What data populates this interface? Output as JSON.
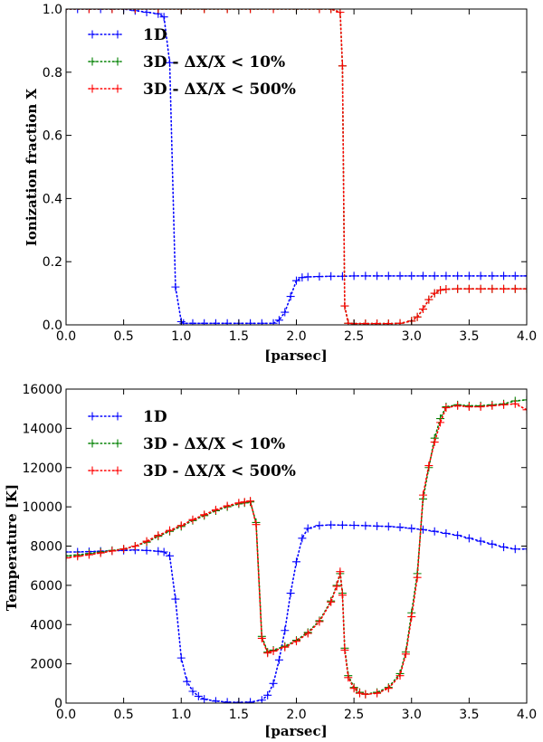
{
  "chart_data": [
    {
      "type": "line",
      "title": "",
      "xlabel": "[parsec]",
      "ylabel": "Ionization fraction X",
      "xlim": [
        0.0,
        4.0
      ],
      "ylim": [
        0.0,
        1.0
      ],
      "xticks": [
        "0.0",
        "0.5",
        "1.0",
        "1.5",
        "2.0",
        "2.5",
        "3.0",
        "3.5",
        "4.0"
      ],
      "yticks": [
        "0.0",
        "0.2",
        "0.4",
        "0.6",
        "0.8",
        "1.0"
      ],
      "legend_position": "top-left",
      "series": [
        {
          "name": "1D",
          "color": "#0000ff",
          "x": [
            0.0,
            0.1,
            0.2,
            0.3,
            0.4,
            0.5,
            0.6,
            0.7,
            0.8,
            0.85,
            0.9,
            0.95,
            1.0,
            1.02,
            1.1,
            1.2,
            1.3,
            1.4,
            1.5,
            1.6,
            1.7,
            1.8,
            1.85,
            1.9,
            1.95,
            2.0,
            2.05,
            2.1,
            2.2,
            2.3,
            2.4,
            2.5,
            2.6,
            2.7,
            2.8,
            2.9,
            3.0,
            3.1,
            3.2,
            3.3,
            3.4,
            3.5,
            3.6,
            3.7,
            3.8,
            3.9,
            4.0
          ],
          "y": [
            1.0,
            1.0,
            1.0,
            1.0,
            1.0,
            1.0,
            0.995,
            0.99,
            0.985,
            0.975,
            0.83,
            0.12,
            0.01,
            0.005,
            0.005,
            0.005,
            0.005,
            0.005,
            0.005,
            0.005,
            0.005,
            0.005,
            0.015,
            0.04,
            0.09,
            0.14,
            0.15,
            0.152,
            0.153,
            0.154,
            0.154,
            0.155,
            0.155,
            0.155,
            0.155,
            0.155,
            0.155,
            0.155,
            0.155,
            0.155,
            0.155,
            0.155,
            0.155,
            0.155,
            0.155,
            0.155,
            0.155
          ]
        },
        {
          "name": "3D - ΔX/X < 10%",
          "color": "#008000",
          "x": [
            0.0,
            0.2,
            0.4,
            0.6,
            0.8,
            1.0,
            1.2,
            1.4,
            1.6,
            1.8,
            2.0,
            2.2,
            2.3,
            2.38,
            2.4,
            2.42,
            2.45,
            2.5,
            2.6,
            2.7,
            2.8,
            2.9,
            3.0,
            3.05,
            3.1,
            3.15,
            3.2,
            3.25,
            3.3,
            3.4,
            3.5,
            3.6,
            3.7,
            3.8,
            3.9,
            4.0
          ],
          "y": [
            1.0,
            1.0,
            1.0,
            1.0,
            1.0,
            1.0,
            1.0,
            1.0,
            1.0,
            1.0,
            1.0,
            1.0,
            1.0,
            0.99,
            0.82,
            0.06,
            0.005,
            0.004,
            0.004,
            0.004,
            0.004,
            0.005,
            0.012,
            0.025,
            0.05,
            0.08,
            0.1,
            0.11,
            0.113,
            0.114,
            0.114,
            0.114,
            0.114,
            0.114,
            0.114,
            0.114
          ]
        },
        {
          "name": "3D - ΔX/X < 500%",
          "color": "#ff0000",
          "x": [
            0.0,
            0.2,
            0.4,
            0.6,
            0.8,
            1.0,
            1.2,
            1.4,
            1.6,
            1.8,
            2.0,
            2.2,
            2.3,
            2.38,
            2.4,
            2.42,
            2.45,
            2.5,
            2.6,
            2.7,
            2.8,
            2.9,
            3.0,
            3.05,
            3.1,
            3.15,
            3.2,
            3.25,
            3.3,
            3.4,
            3.5,
            3.6,
            3.7,
            3.8,
            3.9,
            4.0
          ],
          "y": [
            1.0,
            1.0,
            1.0,
            1.0,
            1.0,
            1.0,
            1.0,
            1.0,
            1.0,
            1.0,
            1.0,
            1.0,
            1.0,
            0.99,
            0.82,
            0.06,
            0.005,
            0.004,
            0.004,
            0.004,
            0.004,
            0.005,
            0.012,
            0.025,
            0.05,
            0.08,
            0.1,
            0.11,
            0.113,
            0.114,
            0.114,
            0.114,
            0.114,
            0.114,
            0.114,
            0.114
          ]
        }
      ]
    },
    {
      "type": "line",
      "title": "",
      "xlabel": "[parsec]",
      "ylabel": "Temperature [K]",
      "xlim": [
        0.0,
        4.0
      ],
      "ylim": [
        0,
        16000
      ],
      "xticks": [
        "0.0",
        "0.5",
        "1.0",
        "1.5",
        "2.0",
        "2.5",
        "3.0",
        "3.5",
        "4.0"
      ],
      "yticks": [
        "0",
        "2000",
        "4000",
        "6000",
        "8000",
        "10000",
        "12000",
        "14000",
        "16000"
      ],
      "legend_position": "top-left",
      "series": [
        {
          "name": "1D",
          "color": "#0000ff",
          "x": [
            0.0,
            0.1,
            0.2,
            0.3,
            0.4,
            0.5,
            0.6,
            0.7,
            0.8,
            0.85,
            0.9,
            0.95,
            1.0,
            1.05,
            1.1,
            1.15,
            1.2,
            1.3,
            1.4,
            1.5,
            1.6,
            1.7,
            1.75,
            1.8,
            1.85,
            1.9,
            1.95,
            2.0,
            2.05,
            2.1,
            2.2,
            2.3,
            2.4,
            2.5,
            2.6,
            2.7,
            2.8,
            2.9,
            3.0,
            3.1,
            3.2,
            3.3,
            3.4,
            3.5,
            3.6,
            3.7,
            3.8,
            3.9,
            4.0
          ],
          "y": [
            7700,
            7700,
            7720,
            7740,
            7760,
            7780,
            7800,
            7780,
            7740,
            7700,
            7500,
            5300,
            2300,
            1100,
            600,
            350,
            200,
            100,
            50,
            40,
            50,
            150,
            400,
            1000,
            2200,
            3700,
            5600,
            7200,
            8400,
            8900,
            9050,
            9080,
            9070,
            9060,
            9040,
            9020,
            9000,
            8960,
            8900,
            8840,
            8750,
            8650,
            8550,
            8400,
            8250,
            8100,
            7950,
            7850,
            7850
          ]
        },
        {
          "name": "3D - ΔX/X < 10%",
          "color": "#008000",
          "x": [
            0.0,
            0.1,
            0.2,
            0.3,
            0.4,
            0.5,
            0.6,
            0.7,
            0.8,
            0.9,
            1.0,
            1.1,
            1.2,
            1.3,
            1.4,
            1.5,
            1.55,
            1.6,
            1.65,
            1.7,
            1.75,
            1.8,
            1.9,
            2.0,
            2.1,
            2.2,
            2.3,
            2.35,
            2.38,
            2.4,
            2.42,
            2.45,
            2.5,
            2.55,
            2.6,
            2.7,
            2.8,
            2.9,
            2.95,
            3.0,
            3.05,
            3.1,
            3.15,
            3.2,
            3.25,
            3.3,
            3.4,
            3.5,
            3.6,
            3.7,
            3.8,
            3.9,
            4.0
          ],
          "y": [
            7500,
            7550,
            7620,
            7700,
            7780,
            7850,
            8000,
            8200,
            8500,
            8750,
            9000,
            9300,
            9550,
            9800,
            10000,
            10150,
            10200,
            10250,
            9200,
            3400,
            2600,
            2700,
            2900,
            3200,
            3600,
            4200,
            5200,
            6000,
            6600,
            5600,
            2800,
            1400,
            800,
            550,
            450,
            550,
            800,
            1500,
            2600,
            4600,
            6600,
            10400,
            12000,
            13500,
            14500,
            15100,
            15200,
            15150,
            15150,
            15200,
            15250,
            15400,
            15450
          ]
        },
        {
          "name": "3D - ΔX/X < 500%",
          "color": "#ff0000",
          "x": [
            0.0,
            0.1,
            0.2,
            0.3,
            0.4,
            0.5,
            0.6,
            0.7,
            0.8,
            0.9,
            1.0,
            1.1,
            1.2,
            1.3,
            1.4,
            1.5,
            1.55,
            1.6,
            1.65,
            1.7,
            1.75,
            1.8,
            1.9,
            2.0,
            2.1,
            2.2,
            2.3,
            2.35,
            2.38,
            2.4,
            2.42,
            2.45,
            2.5,
            2.55,
            2.6,
            2.7,
            2.8,
            2.9,
            2.95,
            3.0,
            3.05,
            3.1,
            3.15,
            3.2,
            3.25,
            3.3,
            3.4,
            3.5,
            3.6,
            3.7,
            3.8,
            3.9,
            4.0
          ],
          "y": [
            7400,
            7480,
            7560,
            7650,
            7750,
            7850,
            8000,
            8250,
            8550,
            8800,
            9050,
            9350,
            9600,
            9850,
            10050,
            10200,
            10250,
            10300,
            9100,
            3300,
            2550,
            2650,
            2850,
            3150,
            3550,
            4150,
            5150,
            5950,
            6700,
            5500,
            2700,
            1300,
            750,
            500,
            450,
            500,
            750,
            1400,
            2500,
            4400,
            6400,
            10600,
            12100,
            13300,
            14300,
            15050,
            15150,
            15100,
            15100,
            15150,
            15200,
            15250,
            14950
          ]
        }
      ]
    }
  ]
}
